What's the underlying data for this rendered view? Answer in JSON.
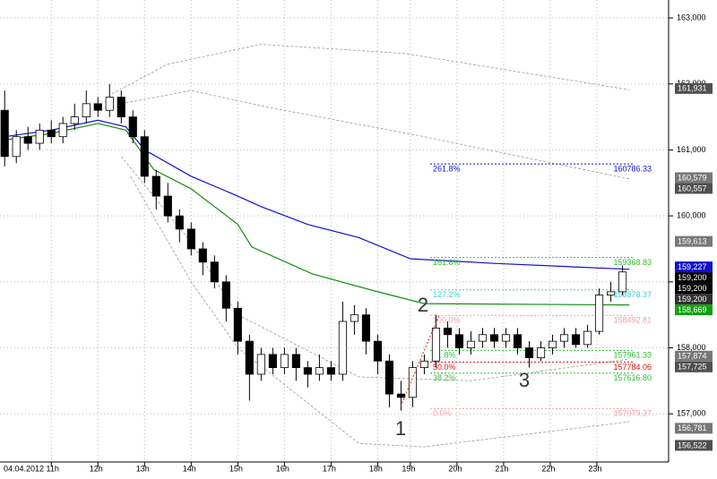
{
  "chart_data": {
    "type": "candlestick",
    "xlim": [
      -0.1,
      14.2
    ],
    "ylim": [
      156.27,
      163.272
    ],
    "xticks": [
      {
        "value": 1,
        "label": "04.04.2012 11h"
      },
      {
        "value": 2,
        "label": "12h"
      },
      {
        "value": 3,
        "label": "13h"
      },
      {
        "value": 4,
        "label": "14h"
      },
      {
        "value": 5,
        "label": "15h"
      },
      {
        "value": 6,
        "label": "16h"
      },
      {
        "value": 7,
        "label": "17h"
      },
      {
        "value": 8,
        "label": "18h"
      },
      {
        "value": 8.7,
        "label": "19h"
      },
      {
        "value": 9.7,
        "label": "20h"
      },
      {
        "value": 10.7,
        "label": "21h"
      },
      {
        "value": 11.7,
        "label": "22h"
      },
      {
        "value": 12.7,
        "label": "23h"
      }
    ],
    "yticks": [
      {
        "value": 157,
        "label": "157,000"
      },
      {
        "value": 158,
        "label": "158,000"
      },
      {
        "value": 159,
        "label": "159,000"
      },
      {
        "value": 160,
        "label": "160,000"
      },
      {
        "value": 161,
        "label": "161,000"
      },
      {
        "value": 162,
        "label": "162,000"
      },
      {
        "value": 163,
        "label": "163,000"
      }
    ],
    "grid": true,
    "candles": {
      "x": [
        0,
        0.25,
        0.5,
        0.75,
        1,
        1.25,
        1.5,
        1.75,
        2,
        2.25,
        2.5,
        2.75,
        3,
        3.25,
        3.5,
        3.75,
        4,
        4.25,
        4.5,
        4.75,
        5,
        5.25,
        5.5,
        5.75,
        6,
        6.25,
        6.5,
        6.75,
        7,
        7.25,
        7.5,
        7.75,
        8,
        8.25,
        8.5,
        8.75,
        9,
        9.25,
        9.5,
        9.75,
        10,
        10.25,
        10.5,
        10.75,
        11,
        11.25,
        11.5,
        11.75,
        12,
        12.25,
        12.5,
        12.75,
        13,
        13.25
      ],
      "open": [
        161.6,
        160.9,
        161.2,
        161.1,
        161.3,
        161.2,
        161.4,
        161.5,
        161.7,
        161.6,
        161.8,
        161.5,
        161.2,
        160.6,
        160.3,
        160.0,
        159.8,
        159.5,
        159.3,
        159.0,
        158.6,
        158.1,
        157.6,
        157.9,
        157.7,
        157.9,
        157.7,
        157.6,
        157.7,
        157.6,
        158.4,
        158.5,
        158.1,
        157.8,
        157.3,
        157.25,
        157.7,
        157.8,
        158.3,
        158.2,
        158.0,
        158.1,
        158.2,
        158.1,
        158.2,
        158.0,
        157.85,
        158.0,
        158.1,
        158.2,
        158.05,
        158.25,
        158.8,
        158.85
      ],
      "high": [
        161.9,
        161.3,
        161.35,
        161.4,
        161.45,
        161.5,
        161.7,
        161.9,
        161.8,
        162.0,
        161.9,
        161.6,
        161.3,
        160.7,
        160.5,
        160.1,
        159.9,
        159.6,
        159.4,
        159.1,
        158.7,
        158.2,
        158.0,
        158.0,
        158.0,
        158.0,
        157.8,
        157.9,
        157.8,
        158.7,
        158.65,
        158.6,
        158.2,
        157.9,
        157.5,
        157.8,
        157.9,
        158.5,
        158.4,
        158.3,
        158.25,
        158.3,
        158.3,
        158.3,
        158.3,
        158.1,
        158.1,
        158.2,
        158.3,
        158.3,
        158.35,
        158.9,
        159.0,
        159.25
      ],
      "low": [
        160.75,
        160.8,
        161.0,
        161.0,
        161.1,
        161.1,
        161.3,
        161.4,
        161.5,
        161.5,
        161.4,
        161.1,
        160.5,
        160.1,
        159.9,
        159.6,
        159.4,
        159.1,
        158.9,
        158.4,
        157.9,
        157.2,
        157.5,
        157.6,
        157.6,
        157.5,
        157.4,
        157.5,
        157.5,
        157.5,
        158.2,
        157.9,
        157.6,
        157.1,
        157.05,
        157.1,
        157.6,
        157.7,
        158.0,
        157.9,
        157.9,
        158.0,
        158.0,
        158.0,
        157.9,
        157.7,
        157.8,
        157.9,
        158.0,
        158.0,
        158.0,
        158.2,
        158.7,
        158.8
      ],
      "close": [
        160.9,
        161.2,
        161.1,
        161.3,
        161.2,
        161.4,
        161.5,
        161.7,
        161.6,
        161.8,
        161.5,
        161.2,
        160.6,
        160.3,
        160.0,
        159.8,
        159.5,
        159.3,
        159.0,
        158.6,
        158.1,
        157.6,
        157.9,
        157.7,
        157.9,
        157.7,
        157.6,
        157.7,
        157.6,
        158.4,
        158.5,
        158.1,
        157.8,
        157.3,
        157.25,
        157.7,
        157.8,
        158.3,
        158.2,
        158.0,
        158.1,
        158.2,
        158.1,
        158.2,
        158.0,
        157.85,
        158.0,
        158.1,
        158.2,
        158.05,
        158.25,
        158.8,
        158.85,
        159.15
      ]
    },
    "lines": [
      {
        "color": "#1010d0",
        "style": "solid",
        "x": [
          0,
          1,
          2,
          2.6,
          3,
          4,
          5,
          5.5,
          6.5,
          7.6,
          8.7,
          10.5,
          13.4
        ],
        "values": [
          161.2,
          161.3,
          161.45,
          161.35,
          161.0,
          160.6,
          160.3,
          160.14,
          159.87,
          159.67,
          159.35,
          159.28,
          159.19
        ]
      },
      {
        "color": "#109010",
        "style": "solid",
        "x": [
          0,
          1,
          2,
          2.6,
          3.2,
          4,
          5,
          5.3,
          6.6,
          8,
          9,
          13.4
        ],
        "values": [
          161.15,
          161.25,
          161.4,
          161.3,
          160.7,
          160.41,
          159.87,
          159.53,
          159.12,
          158.85,
          158.67,
          158.65
        ]
      },
      {
        "color": "#999999",
        "style": "dashed",
        "x": [
          2.3,
          3.5,
          5.5,
          8.6,
          13.4
        ],
        "values": [
          161.85,
          162.3,
          162.6,
          162.46,
          161.91
        ]
      },
      {
        "color": "#999999",
        "style": "dashed",
        "x": [
          2.5,
          4,
          5.7,
          9,
          13.4
        ],
        "values": [
          161.7,
          161.9,
          161.64,
          161.2,
          160.56
        ]
      },
      {
        "color": "#999999",
        "style": "dashed",
        "x": [
          2.5,
          4,
          5,
          7.6,
          10,
          13.4
        ],
        "values": [
          160.9,
          159.6,
          158.5,
          157.56,
          157.5,
          157.83
        ]
      },
      {
        "color": "#999999",
        "style": "dashed",
        "x": [
          2.7,
          4,
          5,
          7.6,
          9,
          13.4
        ],
        "values": [
          160.6,
          159.0,
          158.0,
          156.55,
          156.5,
          156.88
        ]
      }
    ],
    "fib_levels": [
      {
        "pct": "261.8%",
        "value": 160.78633,
        "label": "160786.33",
        "color": "#1010d0"
      },
      {
        "pct": "161.8%",
        "value": 159.36883,
        "label": "159368.83",
        "color": "#30c030"
      },
      {
        "pct": "127.2%",
        "value": 158.87837,
        "label": "158878.37",
        "color": "#40d0d0"
      },
      {
        "pct": "100.0%",
        "value": 158.49281,
        "label": "158492.81",
        "color": "#f4a0a8"
      },
      {
        "pct": "61.8%",
        "value": 157.96133,
        "label": "157961.33",
        "color": "#30c030"
      },
      {
        "pct": "50.0%",
        "value": 157.78406,
        "label": "157784.06",
        "color": "#e01010"
      },
      {
        "pct": "38.2%",
        "value": 157.6168,
        "label": "157616.80",
        "color": "#30c030"
      },
      {
        "pct": "0.0%",
        "value": 157.07927,
        "label": "157079.27",
        "color": "#f4a0a8"
      }
    ],
    "price_labels": [
      {
        "value": 161.931,
        "label": "161,931",
        "color": "#505050"
      },
      {
        "value": 160.579,
        "label": "160,579",
        "color": "#787878"
      },
      {
        "value": 160.557,
        "label": "160,557",
        "color": "#505050"
      },
      {
        "value": 159.613,
        "label": "159,613",
        "color": "#787878"
      },
      {
        "value": 159.227,
        "label": "159,227",
        "color": "#1010d0"
      },
      {
        "value": 159.2,
        "label": "159,200",
        "color": "#000000"
      },
      {
        "value": 159.2,
        "label": "159,200",
        "color": "#000000"
      },
      {
        "value": 159.2,
        "label": "159,200",
        "color": "#303030"
      },
      {
        "value": 158.669,
        "label": "158,669",
        "color": "#10a010"
      },
      {
        "value": 157.874,
        "label": "157,874",
        "color": "#787878"
      },
      {
        "value": 157.725,
        "label": "157,725",
        "color": "#505050"
      },
      {
        "value": 156.781,
        "label": "156,781",
        "color": "#787878"
      },
      {
        "value": 156.522,
        "label": "156,522",
        "color": "#505050"
      }
    ],
    "waves": [
      "1",
      "2",
      "3"
    ]
  }
}
